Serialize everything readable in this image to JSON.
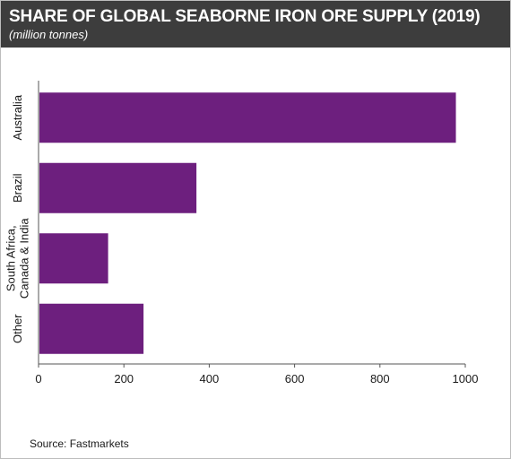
{
  "header": {
    "title": "SHARE OF GLOBAL SEABORNE IRON ORE SUPPLY (2019)",
    "subtitle": "(million tonnes)"
  },
  "footer": {
    "source": "Source: Fastmarkets"
  },
  "colors": {
    "header_bg": "#3d3d3d",
    "bar": "#6d1f7e",
    "axis": "#555555"
  },
  "chart_data": {
    "type": "bar",
    "orientation": "horizontal",
    "categories": [
      [
        "Australia"
      ],
      [
        "Brazil"
      ],
      [
        "South Africa,",
        "Canada & India"
      ],
      [
        "Other"
      ]
    ],
    "values": [
      978,
      370,
      163,
      246
    ],
    "xlim": [
      0,
      1000
    ],
    "xticks": [
      0,
      200,
      400,
      600,
      800,
      1000
    ],
    "grid": false,
    "legend": false
  }
}
